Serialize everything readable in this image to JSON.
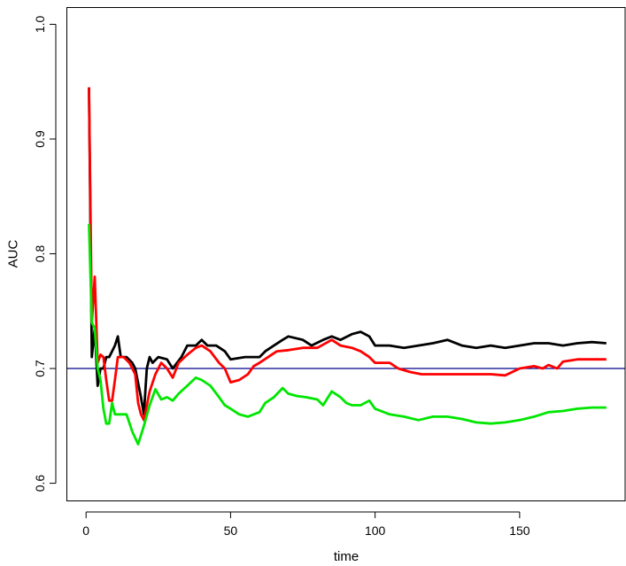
{
  "chart_data": {
    "type": "line",
    "xlabel": "time",
    "ylabel": "AUC",
    "xlim": [
      -6.8,
      186.8
    ],
    "ylim": [
      0.585,
      1.015
    ],
    "x_ticks": [
      0,
      50,
      100,
      150
    ],
    "y_ticks": [
      0.6,
      0.7,
      0.8,
      0.9,
      1.0
    ],
    "x_tick_labels": [
      "0",
      "50",
      "100",
      "150"
    ],
    "y_tick_labels": [
      "0.6",
      "0.7",
      "0.8",
      "0.9",
      "1.0"
    ],
    "grid": false,
    "box": true,
    "reference_line": {
      "y": 0.7,
      "color": "#00008b"
    },
    "series": [
      {
        "color": "#000000",
        "points": [
          [
            1,
            0.945
          ],
          [
            2,
            0.71
          ],
          [
            3,
            0.735
          ],
          [
            4,
            0.685
          ],
          [
            5,
            0.7
          ],
          [
            6,
            0.7
          ],
          [
            7,
            0.71
          ],
          [
            8,
            0.71
          ],
          [
            9,
            0.715
          ],
          [
            10,
            0.72
          ],
          [
            11,
            0.728
          ],
          [
            12,
            0.71
          ],
          [
            14,
            0.71
          ],
          [
            16,
            0.705
          ],
          [
            17,
            0.7
          ],
          [
            19,
            0.675
          ],
          [
            20,
            0.66
          ],
          [
            21,
            0.7
          ],
          [
            22,
            0.71
          ],
          [
            23,
            0.705
          ],
          [
            25,
            0.71
          ],
          [
            28,
            0.708
          ],
          [
            30,
            0.7
          ],
          [
            33,
            0.71
          ],
          [
            35,
            0.72
          ],
          [
            38,
            0.72
          ],
          [
            40,
            0.725
          ],
          [
            42,
            0.72
          ],
          [
            45,
            0.72
          ],
          [
            48,
            0.715
          ],
          [
            50,
            0.708
          ],
          [
            55,
            0.71
          ],
          [
            60,
            0.71
          ],
          [
            62,
            0.715
          ],
          [
            65,
            0.72
          ],
          [
            68,
            0.725
          ],
          [
            70,
            0.728
          ],
          [
            75,
            0.725
          ],
          [
            78,
            0.72
          ],
          [
            82,
            0.725
          ],
          [
            85,
            0.728
          ],
          [
            88,
            0.725
          ],
          [
            92,
            0.73
          ],
          [
            95,
            0.732
          ],
          [
            98,
            0.728
          ],
          [
            100,
            0.72
          ],
          [
            105,
            0.72
          ],
          [
            110,
            0.718
          ],
          [
            115,
            0.72
          ],
          [
            120,
            0.722
          ],
          [
            125,
            0.725
          ],
          [
            130,
            0.72
          ],
          [
            135,
            0.718
          ],
          [
            140,
            0.72
          ],
          [
            145,
            0.718
          ],
          [
            150,
            0.72
          ],
          [
            155,
            0.722
          ],
          [
            160,
            0.722
          ],
          [
            165,
            0.72
          ],
          [
            170,
            0.722
          ],
          [
            175,
            0.723
          ],
          [
            180,
            0.722
          ]
        ]
      },
      {
        "color": "#ff0000",
        "points": [
          [
            1,
            0.945
          ],
          [
            2,
            0.74
          ],
          [
            3,
            0.78
          ],
          [
            4,
            0.705
          ],
          [
            5,
            0.712
          ],
          [
            6,
            0.71
          ],
          [
            7,
            0.69
          ],
          [
            8,
            0.672
          ],
          [
            9,
            0.672
          ],
          [
            10,
            0.69
          ],
          [
            11,
            0.71
          ],
          [
            13,
            0.71
          ],
          [
            15,
            0.705
          ],
          [
            17,
            0.695
          ],
          [
            18,
            0.67
          ],
          [
            19,
            0.66
          ],
          [
            20,
            0.655
          ],
          [
            22,
            0.68
          ],
          [
            24,
            0.695
          ],
          [
            26,
            0.705
          ],
          [
            28,
            0.7
          ],
          [
            30,
            0.692
          ],
          [
            32,
            0.705
          ],
          [
            35,
            0.712
          ],
          [
            38,
            0.718
          ],
          [
            40,
            0.72
          ],
          [
            43,
            0.715
          ],
          [
            46,
            0.705
          ],
          [
            48,
            0.7
          ],
          [
            50,
            0.688
          ],
          [
            53,
            0.69
          ],
          [
            56,
            0.695
          ],
          [
            58,
            0.702
          ],
          [
            60,
            0.705
          ],
          [
            63,
            0.71
          ],
          [
            66,
            0.715
          ],
          [
            70,
            0.716
          ],
          [
            75,
            0.718
          ],
          [
            80,
            0.718
          ],
          [
            85,
            0.725
          ],
          [
            88,
            0.72
          ],
          [
            92,
            0.718
          ],
          [
            95,
            0.715
          ],
          [
            98,
            0.71
          ],
          [
            100,
            0.705
          ],
          [
            105,
            0.705
          ],
          [
            108,
            0.7
          ],
          [
            112,
            0.697
          ],
          [
            116,
            0.695
          ],
          [
            120,
            0.695
          ],
          [
            125,
            0.695
          ],
          [
            130,
            0.695
          ],
          [
            135,
            0.695
          ],
          [
            140,
            0.695
          ],
          [
            145,
            0.694
          ],
          [
            150,
            0.7
          ],
          [
            155,
            0.702
          ],
          [
            158,
            0.7
          ],
          [
            160,
            0.703
          ],
          [
            163,
            0.7
          ],
          [
            165,
            0.706
          ],
          [
            170,
            0.708
          ],
          [
            175,
            0.708
          ],
          [
            180,
            0.708
          ]
        ]
      },
      {
        "color": "#00e600",
        "points": [
          [
            1,
            0.826
          ],
          [
            2,
            0.74
          ],
          [
            3,
            0.735
          ],
          [
            4,
            0.7
          ],
          [
            5,
            0.69
          ],
          [
            6,
            0.665
          ],
          [
            7,
            0.652
          ],
          [
            8,
            0.652
          ],
          [
            9,
            0.67
          ],
          [
            10,
            0.66
          ],
          [
            12,
            0.66
          ],
          [
            14,
            0.66
          ],
          [
            16,
            0.645
          ],
          [
            18,
            0.634
          ],
          [
            20,
            0.65
          ],
          [
            22,
            0.668
          ],
          [
            24,
            0.682
          ],
          [
            26,
            0.673
          ],
          [
            28,
            0.675
          ],
          [
            30,
            0.672
          ],
          [
            32,
            0.678
          ],
          [
            35,
            0.685
          ],
          [
            38,
            0.692
          ],
          [
            40,
            0.69
          ],
          [
            43,
            0.685
          ],
          [
            46,
            0.675
          ],
          [
            48,
            0.668
          ],
          [
            50,
            0.665
          ],
          [
            53,
            0.66
          ],
          [
            56,
            0.658
          ],
          [
            58,
            0.66
          ],
          [
            60,
            0.662
          ],
          [
            62,
            0.67
          ],
          [
            65,
            0.675
          ],
          [
            68,
            0.683
          ],
          [
            70,
            0.678
          ],
          [
            73,
            0.676
          ],
          [
            76,
            0.675
          ],
          [
            80,
            0.673
          ],
          [
            82,
            0.668
          ],
          [
            85,
            0.68
          ],
          [
            88,
            0.675
          ],
          [
            90,
            0.67
          ],
          [
            92,
            0.668
          ],
          [
            95,
            0.668
          ],
          [
            98,
            0.672
          ],
          [
            100,
            0.665
          ],
          [
            105,
            0.66
          ],
          [
            110,
            0.658
          ],
          [
            115,
            0.655
          ],
          [
            120,
            0.658
          ],
          [
            125,
            0.658
          ],
          [
            130,
            0.656
          ],
          [
            135,
            0.653
          ],
          [
            140,
            0.652
          ],
          [
            145,
            0.653
          ],
          [
            150,
            0.655
          ],
          [
            155,
            0.658
          ],
          [
            160,
            0.662
          ],
          [
            165,
            0.663
          ],
          [
            170,
            0.665
          ],
          [
            175,
            0.666
          ],
          [
            180,
            0.666
          ]
        ]
      }
    ]
  }
}
